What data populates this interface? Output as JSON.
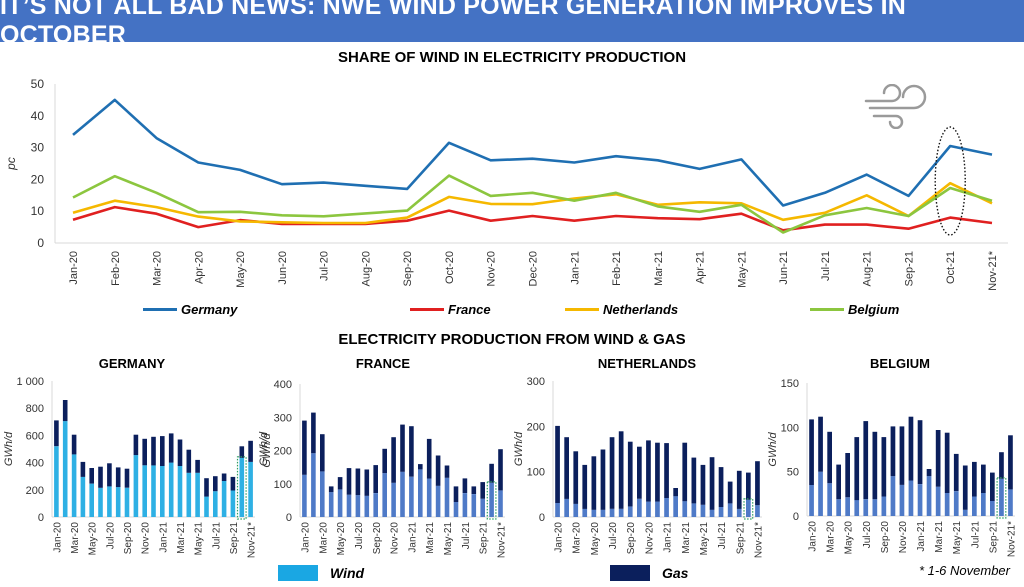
{
  "banner": {
    "title": "IT’S NOT ALL BAD NEWS: NWE WIND POWER GENERATION IMPROVES IN OCTOBER"
  },
  "footnote": "* 1-6 November",
  "icons": {
    "wind": "wind-icon"
  },
  "colors": {
    "banner": "#4472c4",
    "germany": "#1f6fb2",
    "france": "#e02020",
    "netherlands": "#f5b800",
    "belgium": "#8cc63f",
    "wind_germany": "#2eb0e4",
    "wind_other": "#4f7ac7",
    "gas": "#0b1f5c",
    "highlight": "#2e9e62"
  },
  "chart_data": [
    {
      "type": "line",
      "title": "SHARE OF WIND IN ELECTRICITY PRODUCTION",
      "xlabel": "",
      "ylabel": "pc",
      "ylim": [
        0,
        50
      ],
      "yticks": [
        0,
        10,
        20,
        30,
        40,
        50
      ],
      "grid": false,
      "legend_position": "bottom",
      "highlight": "Oct-21",
      "categories": [
        "Jan-20",
        "Feb-20",
        "Mar-20",
        "Apr-20",
        "May-20",
        "Jun-20",
        "Jul-20",
        "Aug-20",
        "Sep-20",
        "Oct-20",
        "Nov-20",
        "Dec-20",
        "Jan-21",
        "Feb-21",
        "Mar-21",
        "Apr-21",
        "May-21",
        "Jun-21",
        "Jul-21",
        "Aug-21",
        "Sep-21",
        "Oct-21",
        "Nov-21*"
      ],
      "series": [
        {
          "name": "Germany",
          "color": "#1f6fb2",
          "values": [
            34,
            45,
            33,
            25.3,
            23,
            18.5,
            19,
            18,
            17,
            31.5,
            26,
            26.5,
            25.3,
            27.3,
            26,
            23.3,
            26.3,
            11.8,
            15.8,
            21.5,
            14.8,
            30.5,
            27.8
          ]
        },
        {
          "name": "France",
          "color": "#e02020",
          "values": [
            7.3,
            11.3,
            9.2,
            5,
            7.2,
            6,
            6,
            6,
            7,
            10.2,
            7,
            8.5,
            7,
            8.5,
            7.8,
            7.5,
            9.2,
            4,
            5.8,
            5.8,
            4.5,
            8,
            6.3
          ]
        },
        {
          "name": "Netherlands",
          "color": "#f5b800",
          "values": [
            9.5,
            13.3,
            11.3,
            8.3,
            6.8,
            6.5,
            6.3,
            6.3,
            8,
            14.5,
            12.3,
            12.2,
            14,
            15.3,
            12,
            12.8,
            12.5,
            7.3,
            9.5,
            15,
            8.5,
            18.8,
            12.5
          ]
        },
        {
          "name": "Belgium",
          "color": "#8cc63f",
          "values": [
            14.3,
            21,
            15.8,
            9.7,
            9.8,
            8.7,
            8.4,
            9.3,
            10.2,
            21.2,
            14.8,
            15.8,
            13.3,
            15.8,
            11.5,
            9.8,
            12,
            3.3,
            8.7,
            11,
            8.5,
            17.3,
            13.3
          ]
        }
      ]
    },
    {
      "type": "bar",
      "stacked": true,
      "section_title": "ELECTRICITY PRODUCTION FROM WIND & GAS",
      "title": "GERMANY",
      "ylabel": "GWh/d",
      "ylim": [
        0,
        1000
      ],
      "yticks": [
        0,
        200,
        400,
        600,
        800,
        1000
      ],
      "ytick_labels": [
        "0",
        "200",
        "400",
        "600",
        "800",
        "1 000"
      ],
      "right_ylabel": "GWh/d",
      "highlight": "Oct-21",
      "categories": [
        "Jan-20",
        "Feb-20",
        "Mar-20",
        "Apr-20",
        "May-20",
        "Jun-20",
        "Jul-20",
        "Aug-20",
        "Sep-20",
        "Oct-20",
        "Nov-20",
        "Dec-20",
        "Jan-21",
        "Feb-21",
        "Mar-21",
        "Apr-21",
        "May-21",
        "Jun-21",
        "Jul-21",
        "Aug-21",
        "Sep-21",
        "Oct-21",
        "Nov-21*"
      ],
      "xtick_labels": [
        "Jan-20",
        "Mar-20",
        "May-20",
        "Jul-20",
        "Sep-20",
        "Nov-20",
        "Jan-21",
        "Mar-21",
        "May-21",
        "Jul-21",
        "Sep-21",
        "Nov-21*"
      ],
      "series": [
        {
          "name": "Wind",
          "values": [
            520,
            705,
            460,
            295,
            245,
            215,
            225,
            220,
            215,
            455,
            380,
            380,
            375,
            400,
            375,
            325,
            325,
            150,
            190,
            265,
            195,
            435,
            405
          ]
        },
        {
          "name": "Gas",
          "values": [
            190,
            155,
            145,
            110,
            115,
            155,
            170,
            145,
            140,
            150,
            195,
            210,
            220,
            215,
            195,
            170,
            95,
            135,
            110,
            55,
            100,
            85,
            155
          ]
        }
      ]
    },
    {
      "type": "bar",
      "stacked": true,
      "title": "FRANCE",
      "ylabel": "GWh/d",
      "ylim": [
        0,
        400
      ],
      "yticks": [
        0,
        100,
        200,
        300,
        400
      ],
      "ytick_labels": [
        "0",
        "100",
        "200",
        "300",
        "400"
      ],
      "highlight": "Oct-21",
      "categories": [
        "Jan-20",
        "Feb-20",
        "Mar-20",
        "Apr-20",
        "May-20",
        "Jun-20",
        "Jul-20",
        "Aug-20",
        "Sep-20",
        "Oct-20",
        "Nov-20",
        "Dec-20",
        "Jan-21",
        "Feb-21",
        "Mar-21",
        "Apr-21",
        "May-21",
        "Jun-21",
        "Jul-21",
        "Aug-21",
        "Sep-21",
        "Oct-21",
        "Nov-21*"
      ],
      "xtick_labels": [
        "Jan-20",
        "Mar-20",
        "May-20",
        "Jul-20",
        "Sep-20",
        "Nov-20",
        "Jan-21",
        "Mar-21",
        "May-21",
        "Jul-21",
        "Sep-21",
        "Nov-21*"
      ],
      "series": [
        {
          "name": "Wind",
          "values": [
            127,
            192,
            137,
            75,
            83,
            67,
            66,
            64,
            72,
            132,
            103,
            136,
            121,
            143,
            116,
            94,
            118,
            45,
            72,
            69,
            55,
            103,
            80
          ]
        },
        {
          "name": "Gas",
          "values": [
            163,
            122,
            112,
            17,
            37,
            80,
            80,
            79,
            84,
            73,
            137,
            142,
            152,
            16,
            119,
            91,
            37,
            47,
            44,
            23,
            50,
            57,
            124
          ]
        }
      ]
    },
    {
      "type": "bar",
      "stacked": true,
      "title": "NETHERLANDS",
      "ylabel": "GWh/d",
      "ylim": [
        0,
        300
      ],
      "yticks": [
        0,
        100,
        200,
        300
      ],
      "ytick_labels": [
        "0",
        "100",
        "200",
        "300"
      ],
      "highlight": "Oct-21",
      "categories": [
        "Jan-20",
        "Feb-20",
        "Mar-20",
        "Apr-20",
        "May-20",
        "Jun-20",
        "Jul-20",
        "Aug-20",
        "Sep-20",
        "Oct-20",
        "Nov-20",
        "Dec-20",
        "Jan-21",
        "Feb-21",
        "Mar-21",
        "Apr-21",
        "May-21",
        "Jun-21",
        "Jul-21",
        "Aug-21",
        "Sep-21",
        "Oct-21",
        "Nov-21*"
      ],
      "xtick_labels": [
        "Jan-20",
        "Mar-20",
        "May-20",
        "Jul-20",
        "Sep-20",
        "Nov-20",
        "Jan-21",
        "Mar-21",
        "May-21",
        "Jul-21",
        "Sep-21",
        "Nov-21*"
      ],
      "series": [
        {
          "name": "Wind",
          "values": [
            31,
            40,
            29,
            18,
            16,
            16,
            18,
            18,
            23,
            40,
            34,
            34,
            42,
            46,
            35,
            30,
            27,
            16,
            22,
            30,
            18,
            38,
            26
          ]
        },
        {
          "name": "Gas",
          "values": [
            170,
            136,
            116,
            97,
            118,
            133,
            158,
            171,
            143,
            115,
            135,
            130,
            121,
            18,
            129,
            101,
            88,
            116,
            88,
            48,
            84,
            60,
            97
          ]
        }
      ]
    },
    {
      "type": "bar",
      "stacked": true,
      "title": "BELGIUM",
      "ylabel": "GWh/d",
      "ylim": [
        0,
        150
      ],
      "yticks": [
        0,
        50,
        100,
        150
      ],
      "ytick_labels": [
        "0",
        "50",
        "100",
        "150"
      ],
      "highlight": "Oct-21",
      "categories": [
        "Jan-20",
        "Feb-20",
        "Mar-20",
        "Apr-20",
        "May-20",
        "Jun-20",
        "Jul-20",
        "Aug-20",
        "Sep-20",
        "Oct-20",
        "Nov-20",
        "Dec-20",
        "Jan-21",
        "Feb-21",
        "Mar-21",
        "Apr-21",
        "May-21",
        "Jun-21",
        "Jul-21",
        "Aug-21",
        "Sep-21",
        "Oct-21",
        "Nov-21*"
      ],
      "xtick_labels": [
        "Jan-20",
        "Mar-20",
        "May-20",
        "Jul-20",
        "Sep-20",
        "Nov-20",
        "Jan-21",
        "Mar-21",
        "May-21",
        "Jul-21",
        "Sep-21",
        "Nov-21*"
      ],
      "series": [
        {
          "name": "Wind",
          "values": [
            35,
            50,
            37,
            19,
            21,
            18,
            19,
            19,
            22,
            45,
            35,
            40,
            36,
            45,
            33,
            26,
            28,
            7,
            22,
            26,
            17,
            42,
            30
          ]
        },
        {
          "name": "Gas",
          "values": [
            74,
            62,
            58,
            39,
            50,
            71,
            88,
            76,
            67,
            56,
            66,
            72,
            72,
            8,
            64,
            68,
            42,
            50,
            39,
            32,
            32,
            30,
            61
          ]
        }
      ]
    }
  ],
  "bar_legend": [
    {
      "name": "Wind",
      "color": "#1aa7e3"
    },
    {
      "name": "Gas",
      "color": "#0b1f5c"
    }
  ]
}
